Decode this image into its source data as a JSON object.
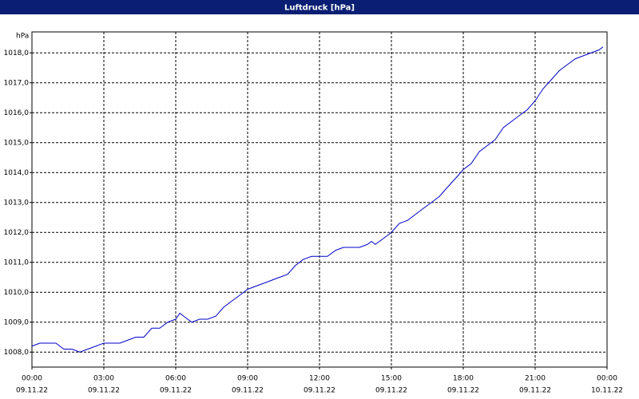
{
  "chart_data": {
    "type": "line",
    "title": "Luftdruck [hPa]",
    "y_unit": "hPa",
    "x": [
      0,
      0.33,
      0.67,
      1,
      1.33,
      1.67,
      2,
      2.33,
      2.67,
      3,
      3.33,
      3.67,
      4,
      4.33,
      4.67,
      5,
      5.33,
      5.67,
      6,
      6.17,
      6.33,
      6.67,
      7,
      7.33,
      7.67,
      8,
      8.33,
      8.67,
      9,
      9.33,
      9.67,
      10,
      10.33,
      10.67,
      11,
      11.33,
      11.67,
      12,
      12.33,
      12.67,
      13,
      13.33,
      13.67,
      14,
      14.17,
      14.33,
      14.67,
      15,
      15.33,
      15.67,
      16,
      16.33,
      16.67,
      17,
      17.33,
      17.67,
      18,
      18.33,
      18.67,
      19,
      19.33,
      19.67,
      20,
      20.33,
      20.67,
      21,
      21.33,
      21.67,
      22,
      22.33,
      22.67,
      23,
      23.33,
      23.67,
      23.83
    ],
    "series": [
      {
        "name": "Luftdruck",
        "color": "#0000c8",
        "values": [
          1008.2,
          1008.3,
          1008.3,
          1008.3,
          1008.1,
          1008.1,
          1008.0,
          1008.1,
          1008.2,
          1008.3,
          1008.3,
          1008.3,
          1008.4,
          1008.5,
          1008.5,
          1008.8,
          1008.8,
          1009.0,
          1009.1,
          1009.3,
          1009.2,
          1009.0,
          1009.1,
          1009.1,
          1009.2,
          1009.5,
          1009.7,
          1009.9,
          1010.1,
          1010.2,
          1010.3,
          1010.4,
          1010.5,
          1010.6,
          1010.9,
          1011.1,
          1011.2,
          1011.2,
          1011.2,
          1011.4,
          1011.5,
          1011.5,
          1011.5,
          1011.6,
          1011.7,
          1011.6,
          1011.8,
          1012.0,
          1012.3,
          1012.4,
          1012.6,
          1012.8,
          1013.0,
          1013.2,
          1013.5,
          1013.8,
          1014.1,
          1014.3,
          1014.7,
          1014.9,
          1015.1,
          1015.5,
          1015.7,
          1015.9,
          1016.1,
          1016.4,
          1016.8,
          1017.1,
          1017.4,
          1017.6,
          1017.8,
          1017.9,
          1018.0,
          1018.1,
          1018.2
        ]
      }
    ],
    "xlim": [
      0,
      24
    ],
    "xticks": [
      {
        "value": 0,
        "label": "00:00"
      },
      {
        "value": 3,
        "label": "03:00"
      },
      {
        "value": 6,
        "label": "06:00"
      },
      {
        "value": 9,
        "label": "09:00"
      },
      {
        "value": 12,
        "label": "12:00"
      },
      {
        "value": 15,
        "label": "15:00"
      },
      {
        "value": 18,
        "label": "18:00"
      },
      {
        "value": 21,
        "label": "21:00"
      },
      {
        "value": 24,
        "label": "00:00"
      }
    ],
    "xtick_dates": [
      "09.11.22",
      "09.11.22",
      "09.11.22",
      "09.11.22",
      "09.11.22",
      "09.11.22",
      "09.11.22",
      "09.11.22",
      "10.11.22"
    ],
    "ylim": [
      1007.5,
      1018.7
    ],
    "yticks": [
      {
        "value": 1008,
        "label": "1008,0"
      },
      {
        "value": 1009,
        "label": "1009,0"
      },
      {
        "value": 1010,
        "label": "1010,0"
      },
      {
        "value": 1011,
        "label": "1011,0"
      },
      {
        "value": 1012,
        "label": "1012,0"
      },
      {
        "value": 1013,
        "label": "1013,0"
      },
      {
        "value": 1014,
        "label": "1014,0"
      },
      {
        "value": 1015,
        "label": "1015,0"
      },
      {
        "value": 1016,
        "label": "1016,0"
      },
      {
        "value": 1017,
        "label": "1017,0"
      },
      {
        "value": 1018,
        "label": "1018,0"
      }
    ],
    "grid": true
  }
}
